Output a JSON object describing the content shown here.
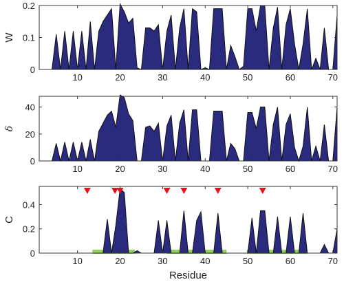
{
  "chart_data": [
    {
      "type": "area",
      "ylabel": "W",
      "xlim": [
        1,
        71
      ],
      "ylim": [
        0,
        0.2
      ],
      "yticks": [
        "0",
        "0.1",
        "0.2"
      ],
      "xticks": [
        "10",
        "20",
        "30",
        "40",
        "50",
        "60",
        "70"
      ],
      "colors": {
        "fill": "#2a2a7e",
        "stroke": "#111111"
      },
      "x": [
        1,
        2,
        3,
        4,
        5,
        6,
        7,
        8,
        9,
        10,
        11,
        12,
        13,
        14,
        15,
        16,
        17,
        18,
        19,
        20,
        21,
        22,
        23,
        24,
        25,
        26,
        27,
        28,
        29,
        30,
        31,
        32,
        33,
        34,
        35,
        36,
        37,
        38,
        39,
        40,
        41,
        42,
        43,
        44,
        45,
        46,
        47,
        48,
        49,
        50,
        51,
        52,
        53,
        54,
        55,
        56,
        57,
        58,
        59,
        60,
        61,
        62,
        63,
        64,
        65,
        66,
        67,
        68,
        69,
        70,
        71
      ],
      "values": [
        0,
        0,
        0,
        0,
        0.11,
        0,
        0.12,
        0,
        0.12,
        0,
        0.12,
        0,
        0.15,
        0,
        0.12,
        0.15,
        0.17,
        0.19,
        0,
        0.205,
        0.18,
        0.145,
        0.16,
        0.005,
        0,
        0.13,
        0.13,
        0.12,
        0.14,
        0,
        0.12,
        0.17,
        0,
        0.13,
        0.19,
        0,
        0.19,
        0.18,
        0,
        0.005,
        0,
        0.19,
        0.19,
        0.19,
        0,
        0.075,
        0.04,
        0,
        0.01,
        0.19,
        0.19,
        0.12,
        0.2,
        0.2,
        0,
        0.13,
        0.195,
        0,
        0.14,
        0.19,
        0.08,
        0,
        0.08,
        0.19,
        0,
        0.035,
        0,
        0.13,
        0,
        0,
        0.17
      ]
    },
    {
      "type": "area",
      "ylabel": "δ",
      "xlim": [
        1,
        71
      ],
      "ylim": [
        0,
        48
      ],
      "yticks": [
        "0",
        "20",
        "40"
      ],
      "xticks": [
        "10",
        "20",
        "30",
        "40",
        "50",
        "60",
        "70"
      ],
      "colors": {
        "fill": "#2a2a7e",
        "stroke": "#111111"
      },
      "x": [
        1,
        2,
        3,
        4,
        5,
        6,
        7,
        8,
        9,
        10,
        11,
        12,
        13,
        14,
        15,
        16,
        17,
        18,
        19,
        20,
        21,
        22,
        23,
        24,
        25,
        26,
        27,
        28,
        29,
        30,
        31,
        32,
        33,
        34,
        35,
        36,
        37,
        38,
        39,
        40,
        41,
        42,
        43,
        44,
        45,
        46,
        47,
        48,
        49,
        50,
        51,
        52,
        53,
        54,
        55,
        56,
        57,
        58,
        59,
        60,
        61,
        62,
        63,
        64,
        65,
        66,
        67,
        68,
        69,
        70,
        71
      ],
      "values": [
        0,
        0,
        0,
        0,
        13,
        0,
        14,
        0,
        14,
        0,
        14,
        0,
        16,
        0,
        22,
        28,
        34,
        37,
        25,
        49,
        47,
        35,
        30,
        0,
        0,
        25,
        26,
        22,
        28,
        0,
        26,
        34,
        0,
        28,
        38,
        0,
        38,
        38,
        0,
        0,
        0,
        37,
        37,
        37,
        0,
        13,
        9,
        0,
        0,
        36,
        36,
        24,
        40,
        40,
        0,
        27,
        40,
        0,
        27,
        35,
        10,
        0,
        11,
        40,
        0,
        11,
        0,
        27,
        0,
        0,
        40
      ]
    },
    {
      "type": "area",
      "ylabel": "C",
      "xlabel": "Residue",
      "xlim": [
        1,
        71
      ],
      "ylim": [
        0,
        0.55
      ],
      "yticks": [
        "0",
        "0.2",
        "0.4"
      ],
      "xticks": [
        "10",
        "20",
        "30",
        "40",
        "50",
        "60",
        "70"
      ],
      "colors": {
        "fill": "#2a2a7e",
        "stroke": "#111111",
        "markers": "#e8141a",
        "bars": "#8fd15a"
      },
      "x": [
        1,
        2,
        3,
        4,
        5,
        6,
        7,
        8,
        9,
        10,
        11,
        12,
        13,
        14,
        15,
        16,
        17,
        18,
        19,
        20,
        21,
        22,
        23,
        24,
        25,
        26,
        27,
        28,
        29,
        30,
        31,
        32,
        33,
        34,
        35,
        36,
        37,
        38,
        39,
        40,
        41,
        42,
        43,
        44,
        45,
        46,
        47,
        48,
        49,
        50,
        51,
        52,
        53,
        54,
        55,
        56,
        57,
        58,
        59,
        60,
        61,
        62,
        63,
        64,
        65,
        66,
        67,
        68,
        69,
        70,
        71
      ],
      "values": [
        0,
        0,
        0,
        0,
        0,
        0,
        0,
        0,
        0,
        0,
        0,
        0,
        0,
        0,
        0,
        0,
        0.28,
        0,
        0.23,
        0.53,
        0.5,
        0,
        0,
        0.02,
        0,
        0,
        0,
        0,
        0.27,
        0,
        0.27,
        0,
        0,
        0,
        0.35,
        0,
        0,
        0.27,
        0.34,
        0,
        0,
        0,
        0.33,
        0,
        0,
        0,
        0,
        0,
        0,
        0,
        0.29,
        0,
        0.35,
        0.35,
        0,
        0,
        0.3,
        0,
        0,
        0.3,
        0,
        0,
        0.33,
        0,
        0,
        0,
        0,
        0.07,
        0,
        0,
        0.2
      ],
      "markers_x": [
        12.3,
        18.8,
        20,
        31,
        35,
        43,
        53.5
      ],
      "highlight_ranges": [
        [
          13.5,
          23.5
        ],
        [
          31,
          45
        ],
        [
          49.8,
          64
        ]
      ]
    }
  ]
}
